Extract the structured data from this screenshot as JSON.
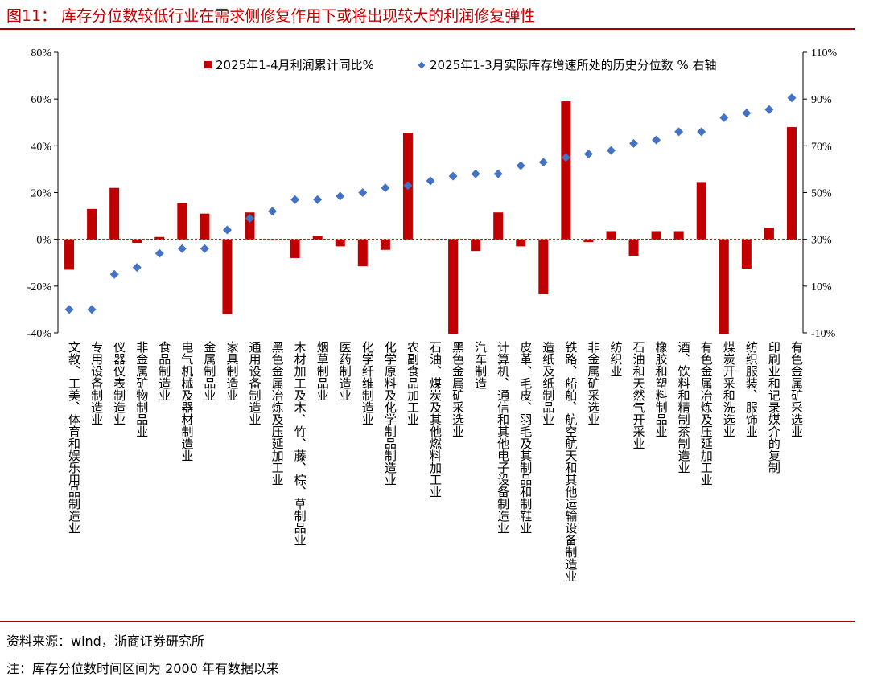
{
  "figure": {
    "title": "图11：  库存分位数较低行业在需求侧修复作用下或将出现较大的利润修复弹性",
    "source": "资料来源：wind，浙商证券研究所",
    "note": "注：库存分位数时间区间为 2000 年有数据以来"
  },
  "colors": {
    "bar": "#c00000",
    "diamond": "#4472c4",
    "rule": "#a00000",
    "title": "#c00000",
    "zero_line": "#c00000"
  },
  "chart_data": {
    "type": "bar",
    "categories": [
      "文教、工美、体育和娱乐用品制造业",
      "专用设备制造业",
      "仪器仪表制造业",
      "非金属矿物制品业",
      "食品制造业",
      "电气机械及器材制造业",
      "金属制品业",
      "家具制造业",
      "通用设备制造业",
      "黑色金属冶炼及压延加工业",
      "木材加工及木、竹、藤、棕、草制品业",
      "烟草制品业",
      "医药制造业",
      "化学纤维制造业",
      "化学原料及化学制品制造业",
      "农副食品加工业",
      "石油、煤炭及其他燃料加工业",
      "黑色金属矿采选业",
      "汽车制造",
      "计算机、通信和其他电子设备制造业",
      "皮革、毛皮、羽毛及其制品和制鞋业",
      "造纸及纸制品业",
      "铁路、船舶、航空航天和其他运输设备制造业",
      "非金属矿采选业",
      "纺织业",
      "石油和天然气开采业",
      "橡胶和塑料制品业",
      "酒、饮料和精制茶制造业",
      "有色金属冶炼及压延加工业",
      "煤炭开采和洗选业",
      "纺织服装、服饰业",
      "印刷业和记录媒介的复制",
      "有色金属矿采选业"
    ],
    "series": [
      {
        "name": "2025年1-4月利润累计同比%",
        "type": "bar",
        "axis": "left",
        "values": [
          -13,
          13,
          22,
          -1.5,
          1,
          15.5,
          11,
          -32,
          11.5,
          0,
          -8,
          1.5,
          -3,
          -11.5,
          -4.5,
          45.5,
          0,
          -40.5,
          -5,
          11.5,
          -3,
          -23.5,
          59,
          -1.2,
          3.5,
          -7,
          3.5,
          3.5,
          24.5,
          -40.5,
          -12.5,
          5,
          48
        ]
      },
      {
        "name": "2025年1-3月实际库存增速所处的历史分位数 % 右轴",
        "type": "scatter",
        "axis": "right",
        "values": [
          0,
          0,
          15,
          18,
          24,
          26,
          26,
          34,
          39,
          42,
          47,
          47,
          48.5,
          50,
          52,
          53,
          55,
          57,
          58,
          58,
          61.5,
          63,
          65,
          66.5,
          68,
          71,
          72.5,
          76,
          76,
          82,
          84,
          85.5,
          90.5
        ]
      }
    ],
    "y_left": {
      "ticks": [
        "80%",
        "60%",
        "40%",
        "20%",
        "0%",
        "-20%",
        "-40%"
      ],
      "ylim": [
        -40,
        80
      ]
    },
    "y_right": {
      "ticks": [
        "110%",
        "90%",
        "70%",
        "50%",
        "30%",
        "10%",
        "-10%"
      ],
      "ylim": [
        -10,
        110
      ]
    },
    "grid": false,
    "legend": "top"
  }
}
